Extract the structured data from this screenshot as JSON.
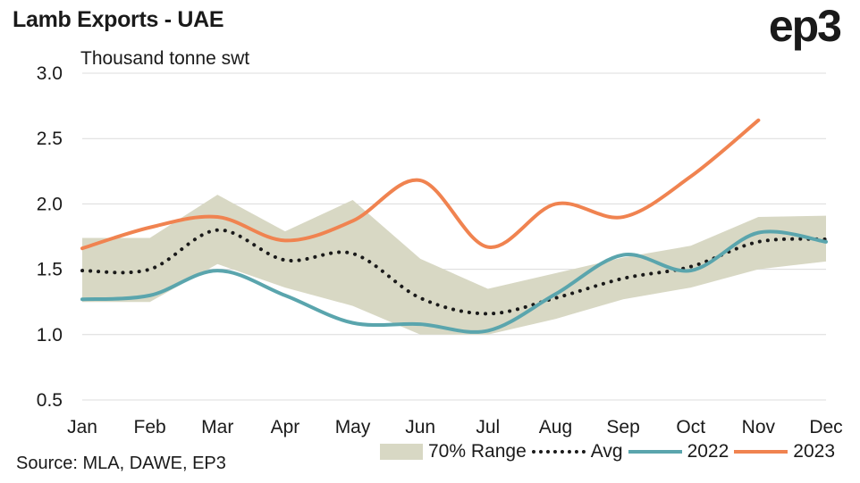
{
  "header": {
    "title": "Lamb Exports - UAE",
    "logo_text": "ep3"
  },
  "footer": {
    "source": "Source: MLA, DAWE, EP3"
  },
  "chart_data": {
    "type": "line",
    "title": "Lamb Exports - UAE",
    "ylabel": "Thousand tonne swt",
    "xlabel": "",
    "ylim": [
      0.5,
      3.0
    ],
    "yticks": [
      "0.5",
      "1.0",
      "1.5",
      "2.0",
      "2.5",
      "3.0"
    ],
    "categories": [
      "Jan",
      "Feb",
      "Mar",
      "Apr",
      "May",
      "Jun",
      "Jul",
      "Aug",
      "Sep",
      "Oct",
      "Nov",
      "Dec"
    ],
    "grid": true,
    "legend_position": "bottom-right",
    "range": {
      "name": "70% Range",
      "color": "#d8d8c4",
      "low": [
        1.25,
        1.25,
        1.54,
        1.36,
        1.22,
        1.0,
        1.0,
        1.12,
        1.27,
        1.36,
        1.5,
        1.56
      ],
      "high": [
        1.74,
        1.74,
        2.07,
        1.79,
        2.03,
        1.58,
        1.35,
        1.47,
        1.59,
        1.68,
        1.9,
        1.91
      ]
    },
    "series": [
      {
        "name": "Avg",
        "color": "#1a1a1a",
        "style": "dotted",
        "values": [
          1.49,
          1.5,
          1.8,
          1.57,
          1.62,
          1.28,
          1.16,
          1.28,
          1.43,
          1.52,
          1.71,
          1.73
        ]
      },
      {
        "name": "2022",
        "color": "#5aa5ad",
        "style": "solid",
        "values": [
          1.27,
          1.3,
          1.49,
          1.3,
          1.09,
          1.08,
          1.03,
          1.31,
          1.61,
          1.49,
          1.78,
          1.71
        ]
      },
      {
        "name": "2023",
        "color": "#f08350",
        "style": "solid",
        "values": [
          1.66,
          1.82,
          1.9,
          1.72,
          1.87,
          2.18,
          1.67,
          2.0,
          1.9,
          2.21,
          2.64,
          null
        ]
      }
    ]
  }
}
